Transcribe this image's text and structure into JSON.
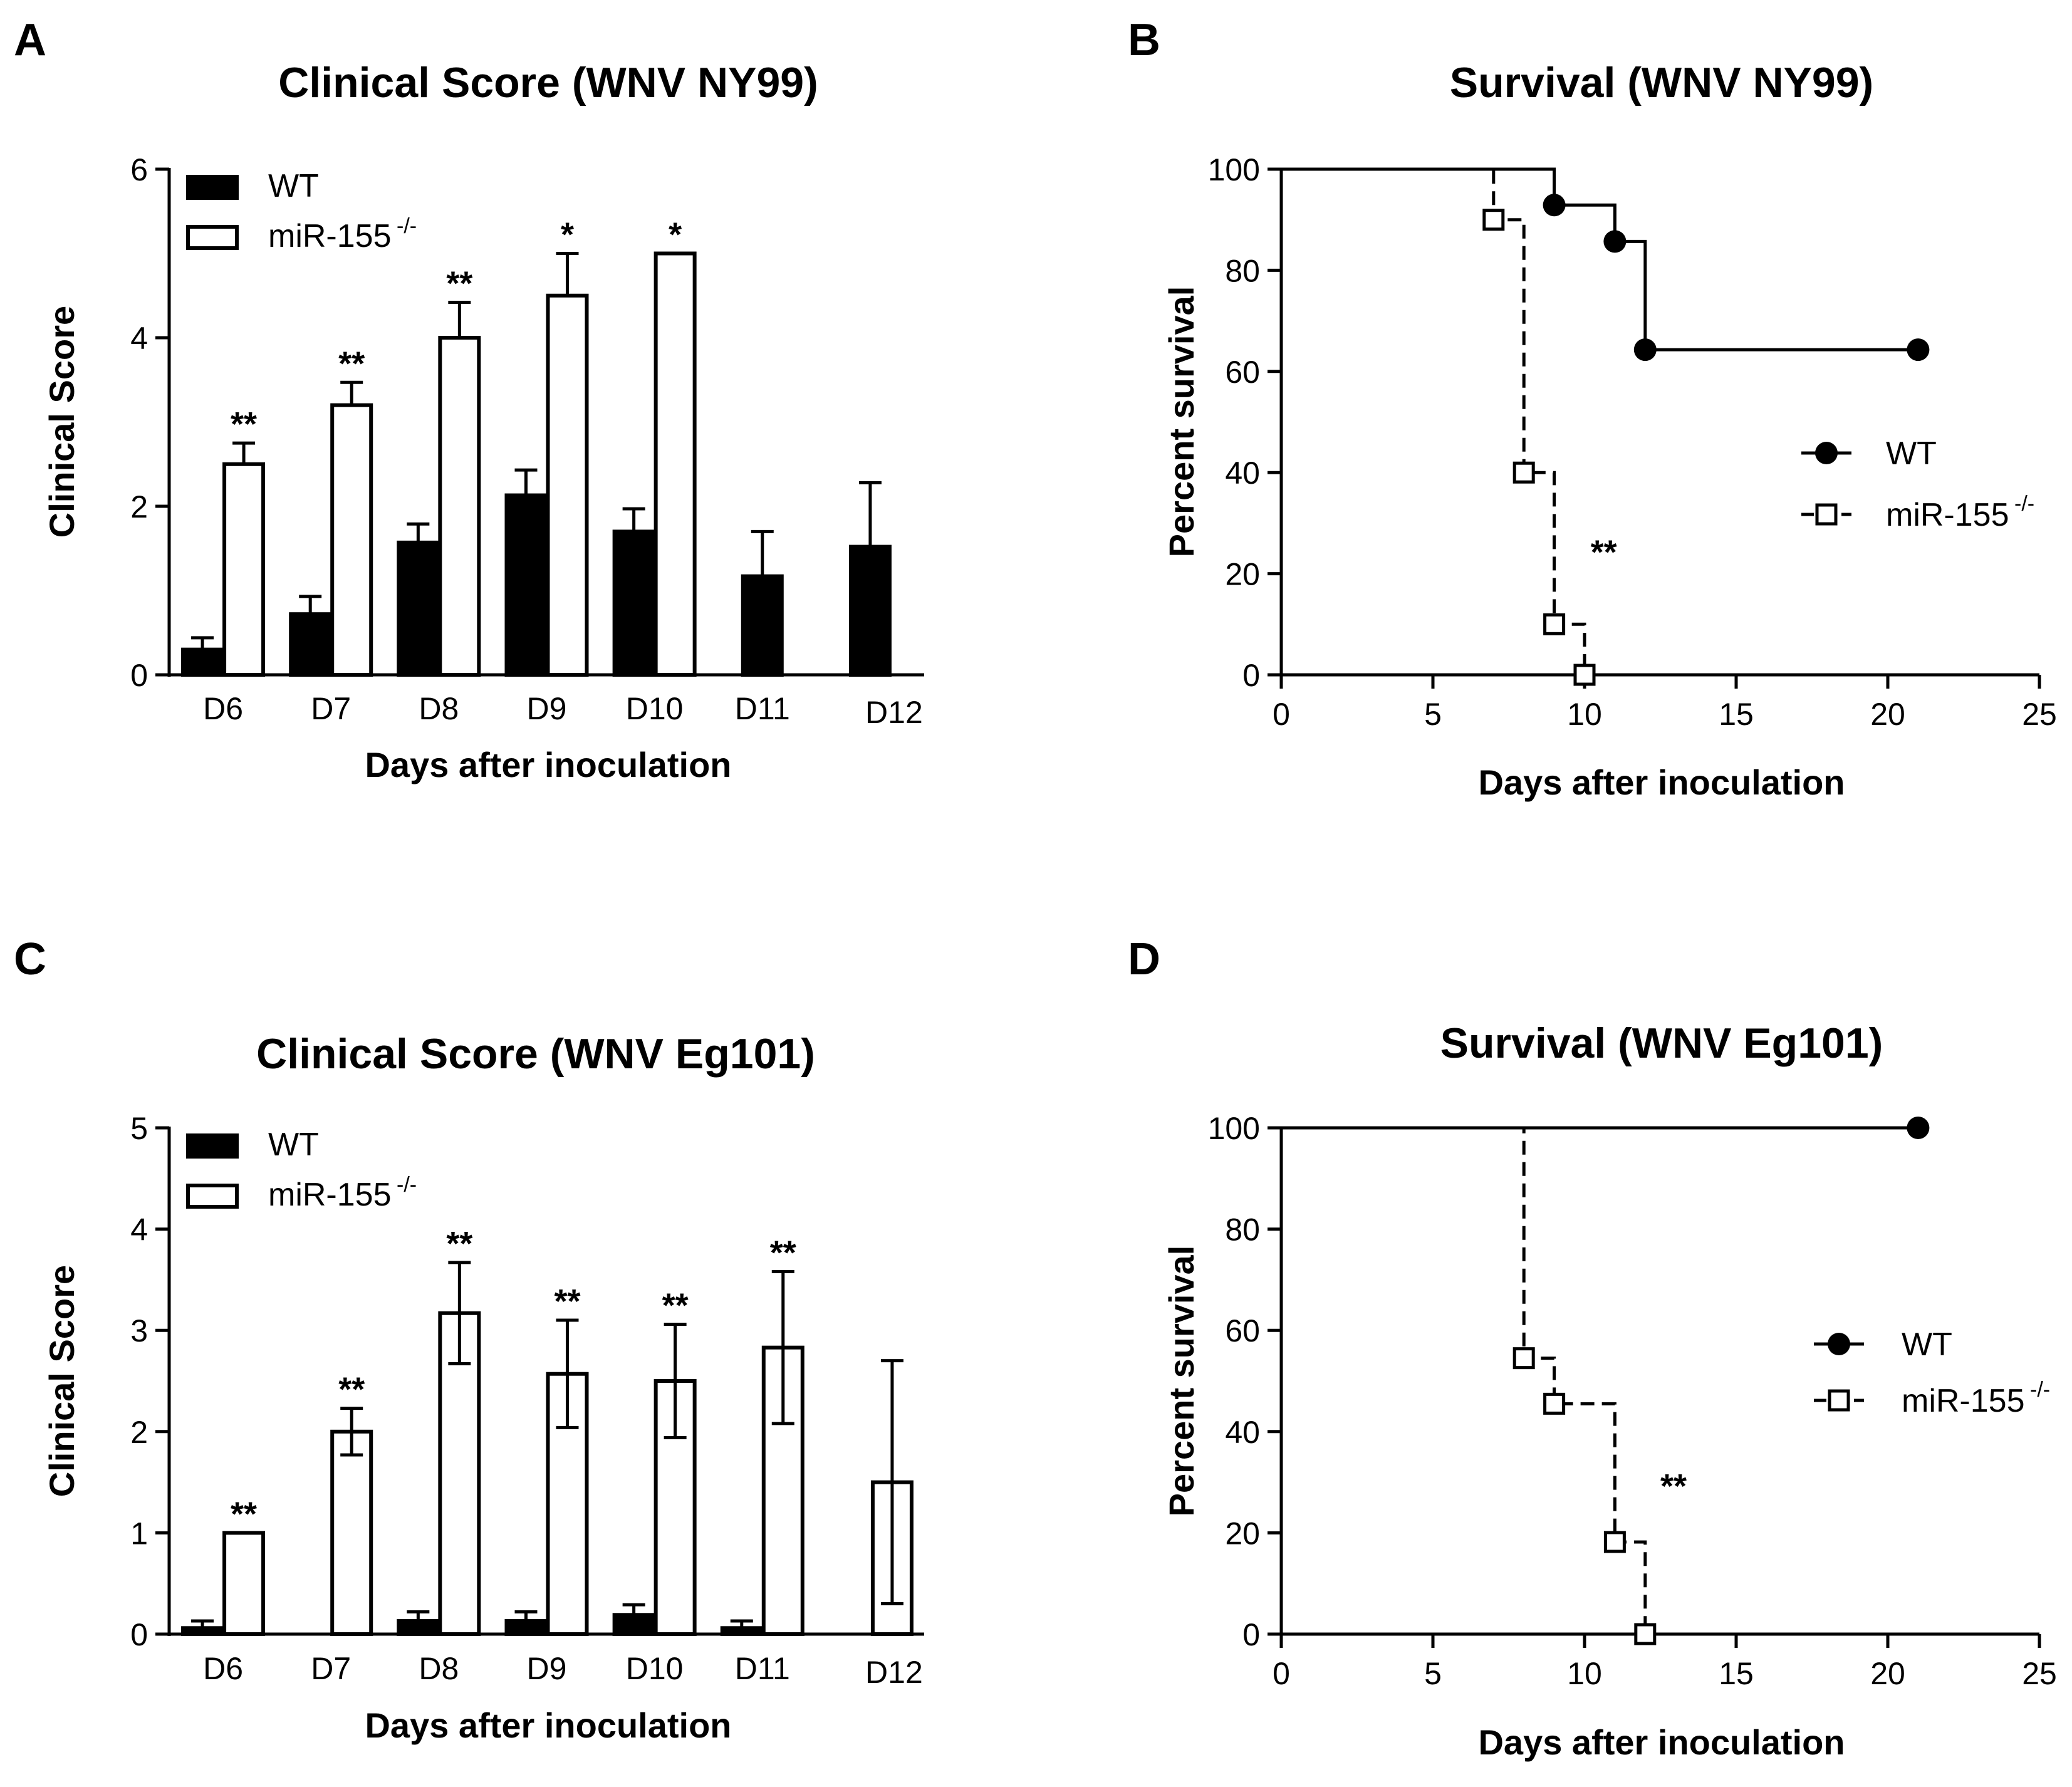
{
  "figure": {
    "panel_labels": [
      "A",
      "B",
      "C",
      "D"
    ]
  },
  "chart_data": [
    {
      "panel": "A",
      "type": "bar",
      "title": "Clinical Score (WNV NY99)",
      "xlabel": "Days after inoculation",
      "ylabel": "Clinical Score",
      "ylim": [
        0,
        6
      ],
      "yticks": [
        0,
        2,
        4,
        6
      ],
      "categories": [
        "D6",
        "D7",
        "D8",
        "D9",
        "D10",
        "D11",
        "D12"
      ],
      "legend": {
        "position": "top-left",
        "entries": [
          "WT",
          "miR-155"
        ],
        "superscript": "-/-"
      },
      "series": [
        {
          "name": "WT",
          "fill": "#000000",
          "values": [
            0.3,
            0.72,
            1.57,
            2.13,
            1.7,
            1.17,
            1.52
          ],
          "errors": [
            0.14,
            0.21,
            0.22,
            0.3,
            0.27,
            0.53,
            0.76
          ]
        },
        {
          "name": "miR-155-/-",
          "fill": "#ffffff",
          "values": [
            2.5,
            3.2,
            4.0,
            4.5,
            5.0,
            null,
            null
          ],
          "errors": [
            0.25,
            0.27,
            0.42,
            0.5,
            0,
            null,
            null
          ]
        }
      ],
      "significance": [
        "**",
        "**",
        "**",
        "*",
        "*",
        "",
        ""
      ]
    },
    {
      "panel": "B",
      "type": "line",
      "subtype": "kaplan-meier",
      "title": "Survival (WNV NY99)",
      "xlabel": "Days after inoculation",
      "ylabel": "Percent survival",
      "xlim": [
        0,
        25
      ],
      "ylim": [
        0,
        100
      ],
      "xticks": [
        0,
        5,
        10,
        15,
        20,
        25
      ],
      "yticks": [
        0,
        20,
        40,
        60,
        80,
        100
      ],
      "legend": {
        "position": "right",
        "entries": [
          "WT",
          "miR-155"
        ],
        "superscript": "-/-"
      },
      "series": [
        {
          "name": "WT",
          "style": "solid",
          "marker": "filled-circle",
          "steps": [
            [
              0,
              100
            ],
            [
              9,
              92.9
            ],
            [
              11,
              85.7
            ],
            [
              12,
              64.3
            ],
            [
              21,
              64.3
            ]
          ],
          "markers": [
            [
              9,
              92.9
            ],
            [
              11,
              85.7
            ],
            [
              12,
              64.3
            ],
            [
              21,
              64.3
            ]
          ]
        },
        {
          "name": "miR-155-/-",
          "style": "dashed",
          "marker": "open-square",
          "steps": [
            [
              0,
              100
            ],
            [
              7,
              90
            ],
            [
              8,
              40
            ],
            [
              9,
              10
            ],
            [
              10,
              0
            ]
          ],
          "markers": [
            [
              7,
              90
            ],
            [
              8,
              40
            ],
            [
              9,
              10
            ],
            [
              10,
              0
            ]
          ]
        }
      ],
      "annotation": {
        "text": "**",
        "x": 10.2,
        "y": 22
      }
    },
    {
      "panel": "C",
      "type": "bar",
      "title": "Clinical Score (WNV Eg101)",
      "xlabel": "Days after inoculation",
      "ylabel": "Clinical Score",
      "ylim": [
        0,
        5
      ],
      "yticks": [
        0,
        1,
        2,
        3,
        4,
        5
      ],
      "categories": [
        "D6",
        "D7",
        "D8",
        "D9",
        "D10",
        "D11",
        "D12"
      ],
      "legend": {
        "position": "top-left",
        "entries": [
          "WT",
          "miR-155"
        ],
        "superscript": "-/-"
      },
      "series": [
        {
          "name": "WT",
          "fill": "#000000",
          "values": [
            0.06,
            0,
            0.13,
            0.13,
            0.19,
            0.06,
            null
          ],
          "errors": [
            0.07,
            0,
            0.09,
            0.09,
            0.1,
            0.07,
            null
          ]
        },
        {
          "name": "miR-155-/-",
          "fill": "#ffffff",
          "values": [
            1.0,
            2.0,
            3.17,
            2.57,
            2.5,
            2.83,
            1.5
          ],
          "errors": [
            0,
            0.23,
            0.5,
            0.53,
            0.56,
            0.75,
            1.2
          ],
          "lower_errors": [
            0,
            0.23,
            0.5,
            0.53,
            0.56,
            0.75,
            1.2
          ]
        }
      ],
      "significance": [
        "**",
        "**",
        "**",
        "**",
        "**",
        "**",
        ""
      ]
    },
    {
      "panel": "D",
      "type": "line",
      "subtype": "kaplan-meier",
      "title": "Survival (WNV Eg101)",
      "xlabel": "Days after inoculation",
      "ylabel": "Percent survival",
      "xlim": [
        0,
        25
      ],
      "ylim": [
        0,
        100
      ],
      "xticks": [
        0,
        5,
        10,
        15,
        20,
        25
      ],
      "yticks": [
        0,
        20,
        40,
        60,
        80,
        100
      ],
      "legend": {
        "position": "right",
        "entries": [
          "WT",
          "miR-155"
        ],
        "superscript": "-/-"
      },
      "series": [
        {
          "name": "WT",
          "style": "solid",
          "marker": "filled-circle",
          "steps": [
            [
              0,
              100
            ],
            [
              21,
              100
            ]
          ],
          "markers": [
            [
              21,
              100
            ]
          ]
        },
        {
          "name": "miR-155-/-",
          "style": "dashed",
          "marker": "open-square",
          "steps": [
            [
              0,
              100
            ],
            [
              8,
              54.5
            ],
            [
              9,
              45.5
            ],
            [
              11,
              18.2
            ],
            [
              12,
              0
            ]
          ],
          "markers": [
            [
              8,
              54.5
            ],
            [
              9,
              45.5
            ],
            [
              11,
              18.2
            ],
            [
              12,
              0
            ]
          ]
        }
      ],
      "annotation": {
        "text": "**",
        "x": 12.5,
        "y": 27
      }
    }
  ]
}
